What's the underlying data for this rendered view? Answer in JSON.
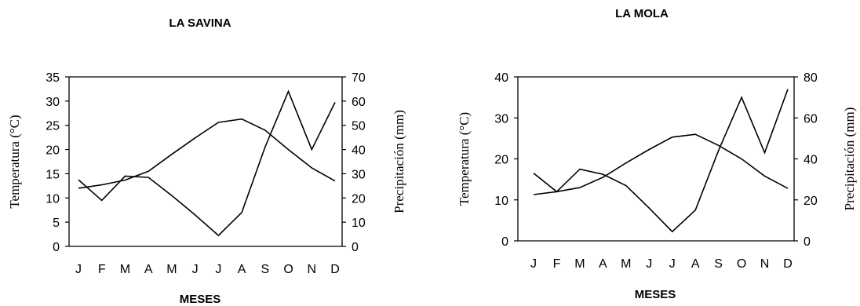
{
  "chart_data": [
    {
      "type": "line",
      "title": "LA SAVINA",
      "xlabel": "MESES",
      "ylabel_left": "Temperatura (°C)",
      "ylabel_right": "Precipitación (mm)",
      "categories": [
        "J",
        "F",
        "M",
        "A",
        "M",
        "J",
        "J",
        "A",
        "S",
        "O",
        "N",
        "D"
      ],
      "ylim_left": [
        0,
        35
      ],
      "ylim_right": [
        0,
        70
      ],
      "yticks_left": [
        "0",
        "5",
        "10",
        "15",
        "20",
        "25",
        "30",
        "35"
      ],
      "yticks_right": [
        "0",
        "10",
        "20",
        "30",
        "40",
        "50",
        "60",
        "70"
      ],
      "series": [
        {
          "axis": "left",
          "values": [
            12,
            12.7,
            13.7,
            15.5,
            19,
            22.4,
            25.6,
            26.3,
            24,
            20,
            16.2,
            13.5
          ]
        },
        {
          "axis": "right",
          "values": [
            27.5,
            19,
            29,
            28.5,
            21,
            13,
            4.5,
            14,
            41,
            64,
            40,
            59.5
          ]
        }
      ]
    },
    {
      "type": "line",
      "title": "LA MOLA",
      "xlabel": "MESES",
      "ylabel_left": "Temperatura (°C)",
      "ylabel_right": "Precipitación (mm)",
      "categories": [
        "J",
        "F",
        "M",
        "A",
        "M",
        "J",
        "J",
        "A",
        "S",
        "O",
        "N",
        "D"
      ],
      "ylim_left": [
        0,
        40
      ],
      "ylim_right": [
        0,
        80
      ],
      "yticks_left": [
        "0",
        "10",
        "20",
        "30",
        "40"
      ],
      "yticks_right": [
        "0",
        "20",
        "40",
        "60",
        "80"
      ],
      "series": [
        {
          "axis": "left",
          "values": [
            11.3,
            12,
            13,
            15.5,
            19,
            22.3,
            25.3,
            26,
            23.3,
            20,
            15.8,
            12.8
          ]
        },
        {
          "axis": "right",
          "values": [
            33,
            24,
            35,
            32.5,
            27,
            16,
            4.5,
            15,
            44,
            70,
            43,
            74
          ]
        }
      ]
    }
  ]
}
